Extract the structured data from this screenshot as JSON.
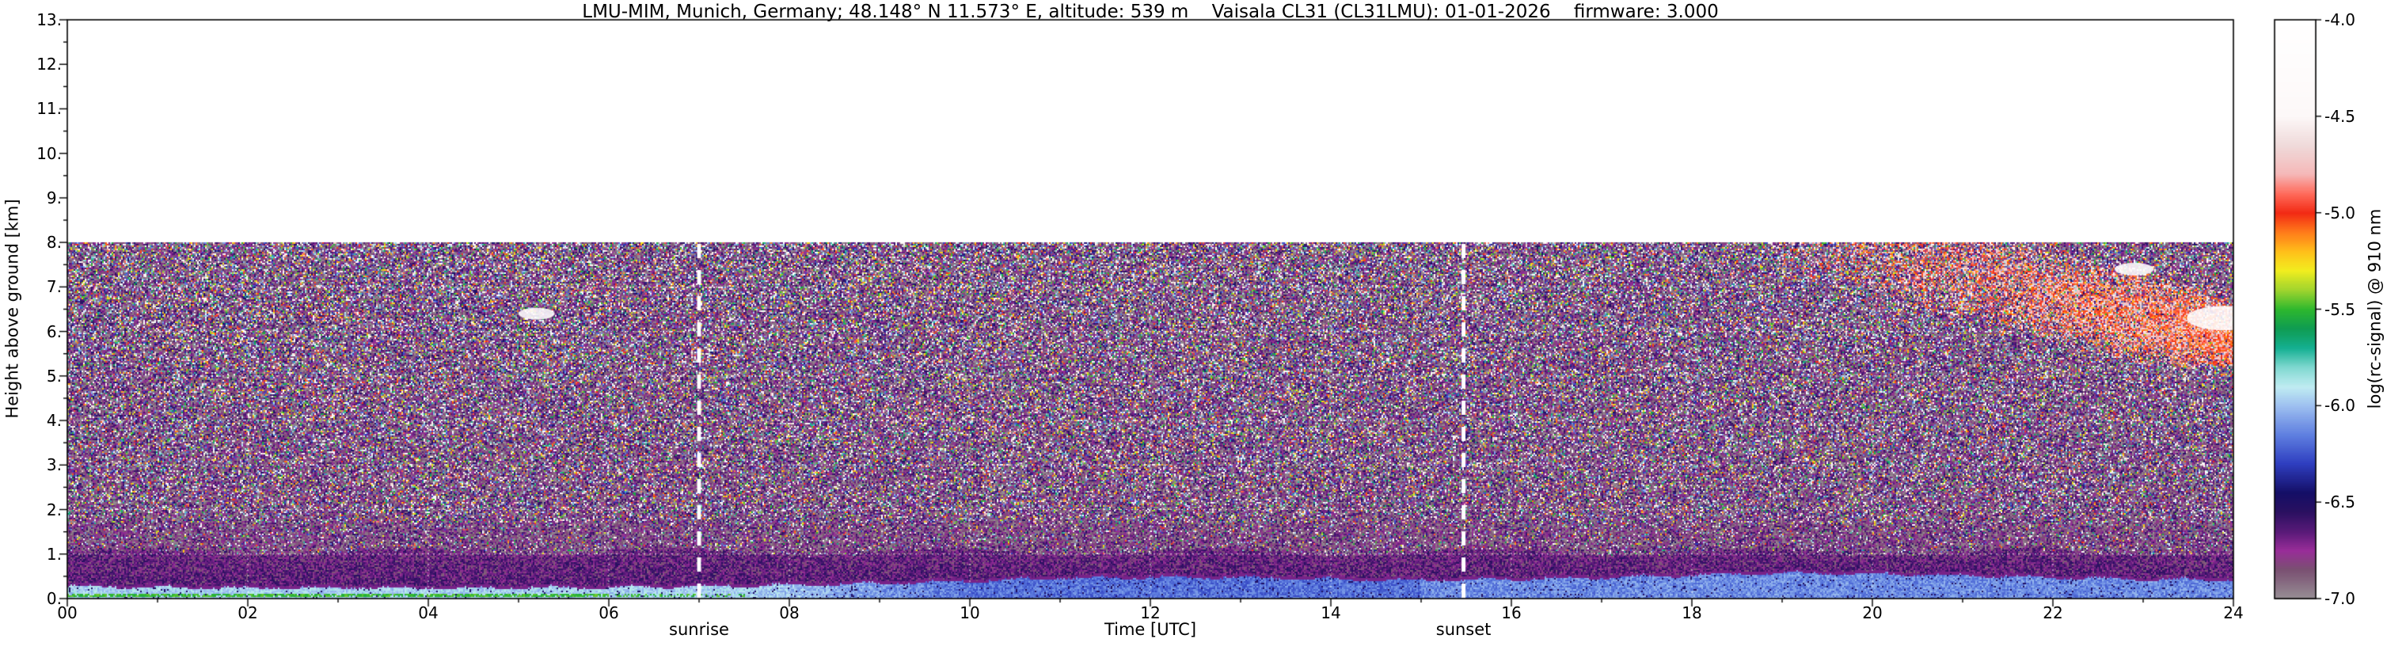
{
  "axes": {
    "x": {
      "label": "Time [UTC]",
      "min": 0,
      "max": 24,
      "major_tick_step_h": 2,
      "tick_labels": [
        "00",
        "02",
        "04",
        "06",
        "08",
        "10",
        "12",
        "14",
        "16",
        "18",
        "20",
        "22",
        "24"
      ]
    },
    "y": {
      "label": "Height above ground [km]",
      "min": 0,
      "max": 13,
      "major_tick_step_km": 1,
      "tick_labels": [
        "0.",
        "1.",
        "2.",
        "3.",
        "4.",
        "5.",
        "6.",
        "7.",
        "8.",
        "9.",
        "10.",
        "11.",
        "12.",
        "13."
      ]
    }
  },
  "annotations": {
    "sunrise": {
      "label": "sunrise",
      "time_utc": 7.0
    },
    "sunset": {
      "label": "sunset",
      "time_utc": 15.47
    },
    "line_color": "#ffffff"
  },
  "grid": {
    "color": "#ffffff",
    "style": "dotted",
    "x_step_h": 2,
    "y_step_km": 1
  },
  "colorbar": {
    "label": "log(rc-signal) @ 910 nm",
    "min": -7.0,
    "max": -4.0,
    "tick_step": 0.5,
    "tick_labels": [
      "-4.0",
      "-4.5",
      "-5.0",
      "-5.5",
      "-6.0",
      "-6.5",
      "-7.0"
    ],
    "colormap": [
      {
        "v": -7.0,
        "c": "#989096"
      },
      {
        "v": -6.85,
        "c": "#7a5072"
      },
      {
        "v": -6.75,
        "c": "#992d99"
      },
      {
        "v": -6.65,
        "c": "#581a78"
      },
      {
        "v": -6.55,
        "c": "#2a1060"
      },
      {
        "v": -6.45,
        "c": "#140e66"
      },
      {
        "v": -6.3,
        "c": "#2f3fc0"
      },
      {
        "v": -6.15,
        "c": "#5f7fe0"
      },
      {
        "v": -6.0,
        "c": "#9ec0f0"
      },
      {
        "v": -5.9,
        "c": "#c0ecf2"
      },
      {
        "v": -5.8,
        "c": "#7fd8d0"
      },
      {
        "v": -5.7,
        "c": "#14b092"
      },
      {
        "v": -5.6,
        "c": "#0f9c52"
      },
      {
        "v": -5.5,
        "c": "#2eb82e"
      },
      {
        "v": -5.4,
        "c": "#9ed42e"
      },
      {
        "v": -5.3,
        "c": "#f2ee1f"
      },
      {
        "v": -5.2,
        "c": "#ffc01a"
      },
      {
        "v": -5.1,
        "c": "#ff7a1a"
      },
      {
        "v": -5.0,
        "c": "#f22a14"
      },
      {
        "v": -4.9,
        "c": "#ff6a5a"
      },
      {
        "v": -4.8,
        "c": "#f5b8b8"
      },
      {
        "v": -4.65,
        "c": "#efdada"
      },
      {
        "v": -4.5,
        "c": "#fdf8f8"
      },
      {
        "v": -4.0,
        "c": "#ffffff"
      }
    ]
  },
  "chart_data": {
    "type": "heatmap",
    "title": "LMU-MIM, Munich, Germany; 48.148° N 11.573° E, altitude: 539 m    Vaisala CL31 (CL31LMU): 01-01-2026    firmware: 3.000",
    "xlabel": "Time [UTC]",
    "ylabel": "Height above ground [km]",
    "value_label": "log(rc-signal) @ 910 nm",
    "x_range_h": [
      0,
      24
    ],
    "y_range_km": [
      0,
      13
    ],
    "data_extent_km": [
      0,
      8
    ],
    "value_range": [
      -7.0,
      -4.0
    ],
    "sunrise_utc": 7.0,
    "sunset_utc": 15.47,
    "background_noise_value_log": [
      -7.0,
      -6.45
    ],
    "noise_speckle": {
      "fraction": 0.4,
      "value_log_range": [
        -7.0,
        -4.2
      ]
    },
    "boundary_layer_top_km": [
      0.3,
      0.28,
      0.26,
      0.27,
      0.26,
      0.27,
      0.28,
      0.3,
      0.33,
      0.36,
      0.42,
      0.48,
      0.5,
      0.5,
      0.46,
      0.44,
      0.46,
      0.5,
      0.55,
      0.6,
      0.58,
      0.55,
      0.5,
      0.46,
      0.44
    ],
    "boundary_layer_value_log_by_period": {
      "night_morning_0_8h": -5.95,
      "midday_10_15h": -6.18,
      "evening_15_24h": -6.12
    },
    "boundary_layer_cap_value_log": -6.7,
    "residual_layer_top_km": 1.05,
    "residual_layer_value_log": [
      -6.8,
      -6.45
    ],
    "surface_green_band": {
      "times_h": [
        0,
        7.5
      ],
      "heights_km": [
        0.05,
        0.1
      ],
      "value_log": -5.5
    },
    "cloud_streaks": {
      "times_h": [
        19,
        24
      ],
      "top_km": 8.0,
      "center_start_km": 8.3,
      "slope_km_per_h": -0.5,
      "half_width_km": 1.1,
      "value_log": [
        -5.2,
        -4.6
      ]
    },
    "cloud_patches": [
      {
        "time_utc": 5.2,
        "height_km": 6.4,
        "radius_km": 0.12
      },
      {
        "time_utc": 22.9,
        "height_km": 7.4,
        "radius_km": 0.13
      },
      {
        "time_utc": 23.9,
        "height_km": 6.3,
        "radius_km": 0.25
      }
    ]
  }
}
